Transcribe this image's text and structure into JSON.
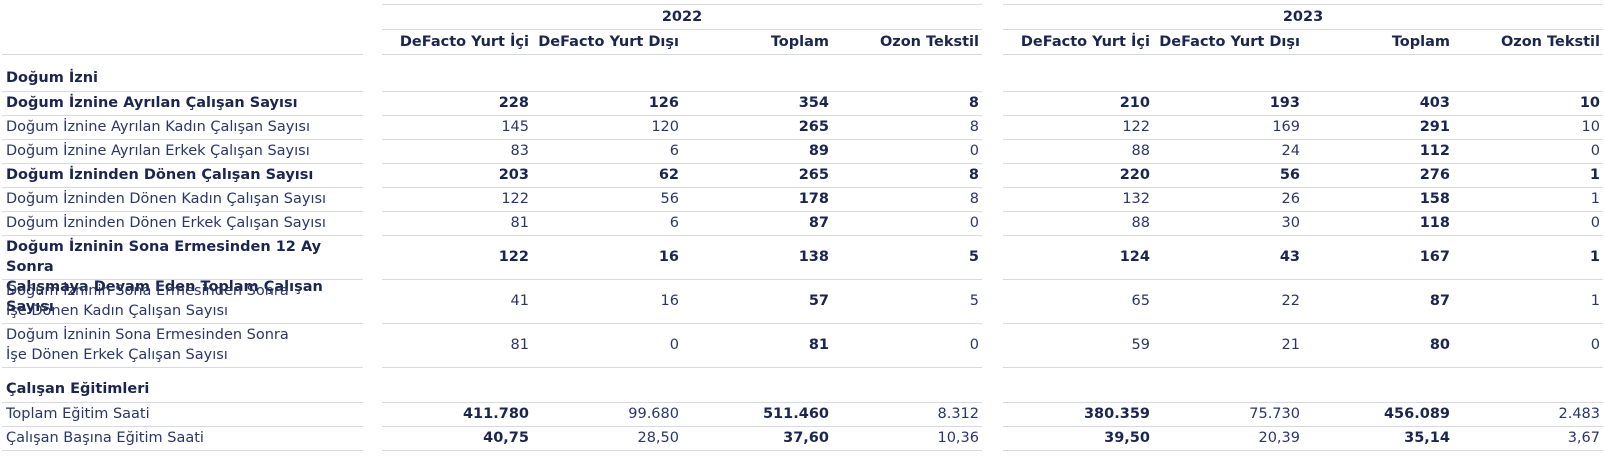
{
  "years": [
    "2022",
    "2023"
  ],
  "columns": [
    "DeFacto Yurt İçi",
    "DeFacto Yurt Dışı",
    "Toplam",
    "Ozon Tekstil"
  ],
  "sections": [
    {
      "title": "Doğum İzni",
      "rows": [
        {
          "label": [
            "Doğum İznine Ayrılan Çalışan Sayısı"
          ],
          "bold": true,
          "v2022": [
            "228",
            "126",
            "354",
            "8"
          ],
          "v2023": [
            "210",
            "193",
            "403",
            "10"
          ],
          "boldCols": [
            true,
            true,
            true,
            true
          ]
        },
        {
          "label": [
            "Doğum İznine Ayrılan Kadın Çalışan Sayısı"
          ],
          "bold": false,
          "v2022": [
            "145",
            "120",
            "265",
            "8"
          ],
          "v2023": [
            "122",
            "169",
            "291",
            "10"
          ],
          "boldCols": [
            false,
            false,
            true,
            false
          ]
        },
        {
          "label": [
            "Doğum İznine Ayrılan Erkek Çalışan Sayısı"
          ],
          "bold": false,
          "v2022": [
            "83",
            "6",
            "89",
            "0"
          ],
          "v2023": [
            "88",
            "24",
            "112",
            "0"
          ],
          "boldCols": [
            false,
            false,
            true,
            false
          ]
        },
        {
          "label": [
            "Doğum İzninden Dönen Çalışan Sayısı"
          ],
          "bold": true,
          "v2022": [
            "203",
            "62",
            "265",
            "8"
          ],
          "v2023": [
            "220",
            "56",
            "276",
            "1"
          ],
          "boldCols": [
            true,
            true,
            true,
            true
          ]
        },
        {
          "label": [
            "Doğum İzninden Dönen Kadın Çalışan Sayısı"
          ],
          "bold": false,
          "v2022": [
            "122",
            "56",
            "178",
            "8"
          ],
          "v2023": [
            "132",
            "26",
            "158",
            "1"
          ],
          "boldCols": [
            false,
            false,
            true,
            false
          ]
        },
        {
          "label": [
            "Doğum İzninden Dönen Erkek Çalışan Sayısı"
          ],
          "bold": false,
          "v2022": [
            "81",
            "6",
            "87",
            "0"
          ],
          "v2023": [
            "88",
            "30",
            "118",
            "0"
          ],
          "boldCols": [
            false,
            false,
            true,
            false
          ]
        },
        {
          "label": [
            "Doğum İzninin Sona Ermesinden 12 Ay Sonra",
            "Çalışmaya Devam Eden Toplam Çalışan Sayısı"
          ],
          "bold": true,
          "v2022": [
            "122",
            "16",
            "138",
            "5"
          ],
          "v2023": [
            "124",
            "43",
            "167",
            "1"
          ],
          "boldCols": [
            true,
            true,
            true,
            true
          ]
        },
        {
          "label": [
            "Doğum İzninin Sona Ermesinden Sonra",
            "İşe Dönen Kadın Çalışan Sayısı"
          ],
          "bold": false,
          "v2022": [
            "41",
            "16",
            "57",
            "5"
          ],
          "v2023": [
            "65",
            "22",
            "87",
            "1"
          ],
          "boldCols": [
            false,
            false,
            true,
            false
          ]
        },
        {
          "label": [
            "Doğum İzninin Sona Ermesinden Sonra",
            "İşe Dönen Erkek Çalışan Sayısı"
          ],
          "bold": false,
          "v2022": [
            "81",
            "0",
            "81",
            "0"
          ],
          "v2023": [
            "59",
            "21",
            "80",
            "0"
          ],
          "boldCols": [
            false,
            false,
            true,
            false
          ]
        }
      ]
    },
    {
      "title": "Çalışan Eğitimleri",
      "rows": [
        {
          "label": [
            "Toplam Eğitim Saati"
          ],
          "bold": false,
          "v2022": [
            "411.780",
            "99.680",
            "511.460",
            "8.312"
          ],
          "v2023": [
            "380.359",
            "75.730",
            "456.089",
            "2.483"
          ],
          "boldCols": [
            true,
            false,
            true,
            false
          ]
        },
        {
          "label": [
            "Çalışan Başına Eğitim Saati"
          ],
          "bold": false,
          "v2022": [
            "40,75",
            "28,50",
            "37,60",
            "10,36"
          ],
          "v2023": [
            "39,50",
            "20,39",
            "35,14",
            "3,67"
          ],
          "boldCols": [
            true,
            false,
            true,
            false
          ]
        }
      ]
    }
  ],
  "colors": {
    "text": "#1f2a5a",
    "rule": "#d6d9e0"
  }
}
